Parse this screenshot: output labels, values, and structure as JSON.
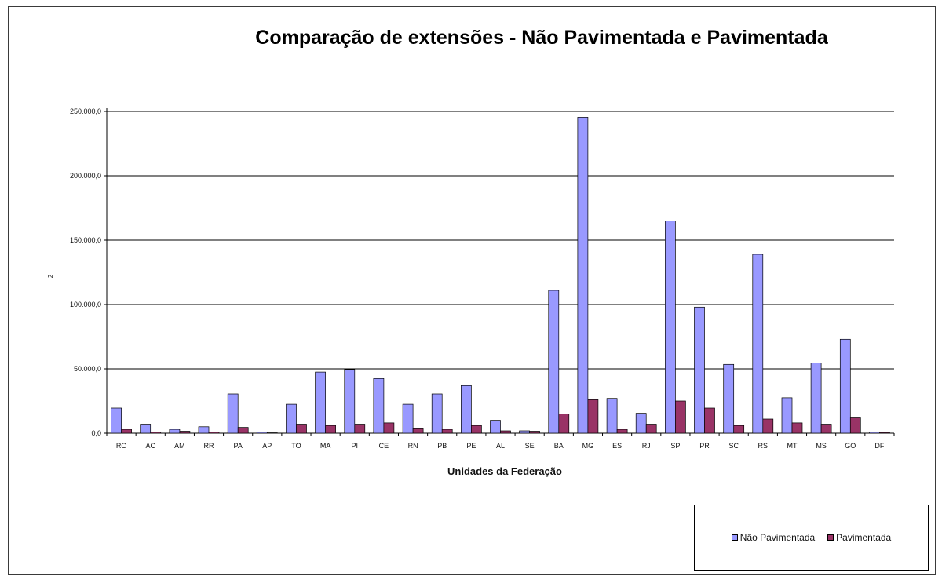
{
  "chart_data": {
    "type": "bar",
    "title": "Comparação de extensões - Não Pavimentada e Pavimentada",
    "xlabel": "Unidades da Federação",
    "ylabel": "2",
    "ylim": [
      0,
      250000
    ],
    "y_ticks": [
      0,
      50000,
      100000,
      150000,
      200000,
      250000
    ],
    "y_tick_labels": [
      "0,0",
      "50.000,0",
      "100.000,0",
      "150.000,0",
      "200.000,0",
      "250.000,0"
    ],
    "grid": true,
    "legend_position": "bottom-right",
    "categories": [
      "RO",
      "AC",
      "AM",
      "RR",
      "PA",
      "AP",
      "TO",
      "MA",
      "PI",
      "CE",
      "RN",
      "PB",
      "PE",
      "AL",
      "SE",
      "BA",
      "MG",
      "ES",
      "RJ",
      "SP",
      "PR",
      "SC",
      "RS",
      "MT",
      "MS",
      "GO",
      "DF"
    ],
    "series": [
      {
        "name": "Não Pavimentada",
        "color": "#9999ff",
        "values": [
          19500,
          7000,
          3000,
          5000,
          30500,
          900,
          22500,
          47500,
          49500,
          42500,
          22500,
          30500,
          37000,
          10000,
          1800,
          111000,
          245500,
          27000,
          15500,
          165000,
          98000,
          53500,
          139000,
          27500,
          54500,
          73000,
          900
        ]
      },
      {
        "name": "Pavimentada",
        "color": "#993366",
        "values": [
          3000,
          1000,
          1500,
          1000,
          4500,
          300,
          7000,
          6000,
          7000,
          8000,
          4000,
          3000,
          6000,
          1800,
          1500,
          15000,
          26000,
          3000,
          7000,
          25000,
          19500,
          6000,
          11000,
          8000,
          7000,
          12500,
          600
        ]
      }
    ]
  }
}
